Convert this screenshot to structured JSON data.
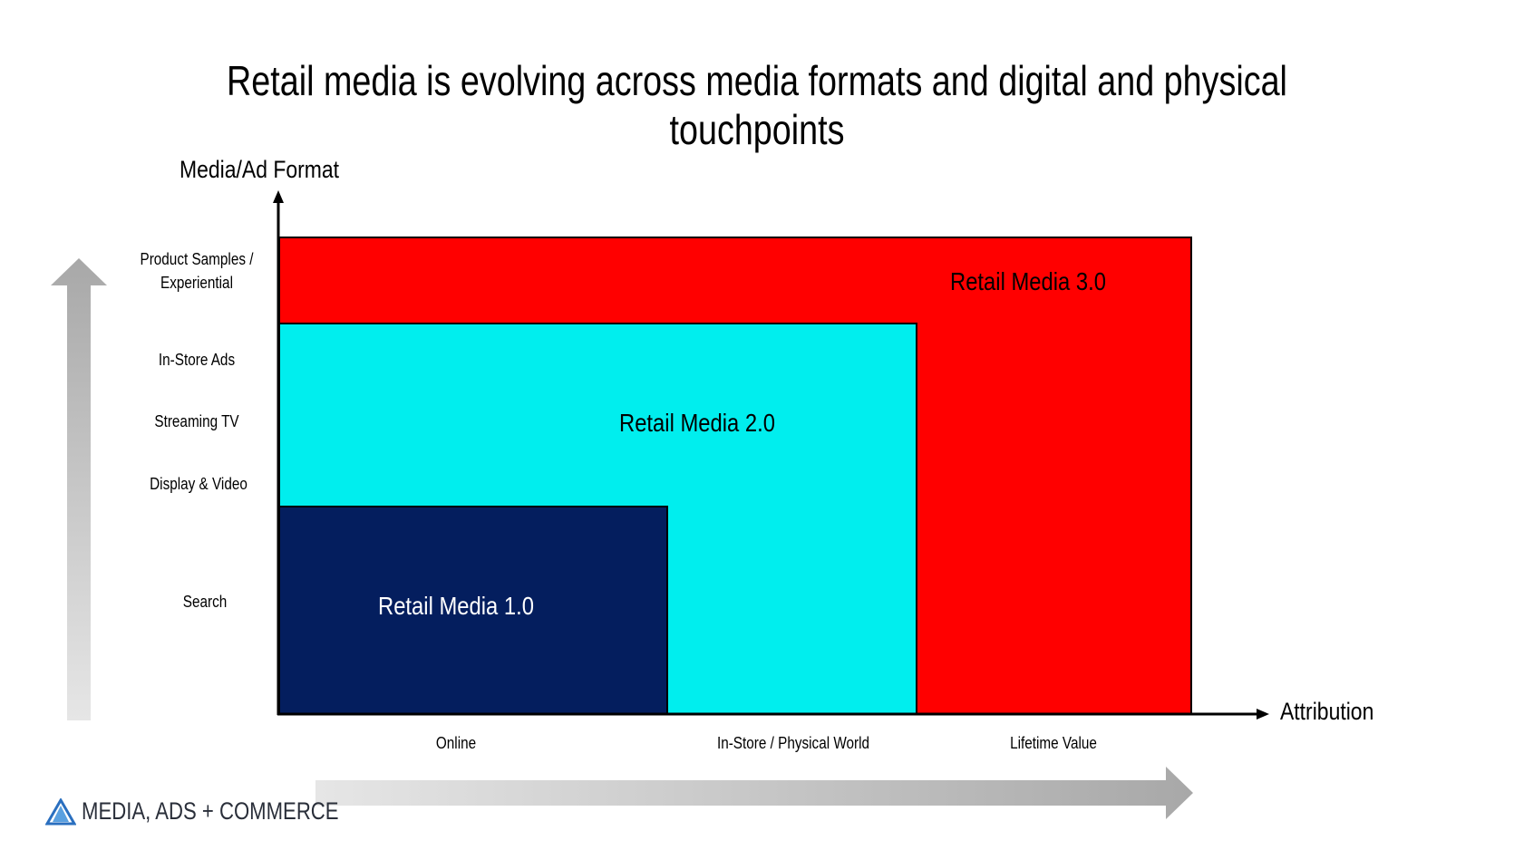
{
  "title": "Retail media is evolving across media formats and digital and physical touchpoints",
  "axes": {
    "y_title": "Media/Ad Format",
    "x_title": "Attribution"
  },
  "y_labels": [
    "Product Samples /\nExperiential",
    "In-Store Ads",
    "Streaming TV",
    "Display & Video",
    "Search"
  ],
  "x_labels": [
    "Online",
    "In-Store  / Physical World",
    "Lifetime Value"
  ],
  "zones": [
    {
      "label": "Retail Media 3.0",
      "color": "#ff0000",
      "text_color": "#000000"
    },
    {
      "label": "Retail Media 2.0",
      "color": "#00eeee",
      "text_color": "#000000"
    },
    {
      "label": "Retail Media 1.0",
      "color": "#041e5e",
      "text_color": "#ffffff"
    }
  ],
  "arrow_color": "#b5b5b5",
  "logo": {
    "text": "MEDIA, ADS + COMMERCE",
    "icon": "triangle-logo-icon"
  }
}
